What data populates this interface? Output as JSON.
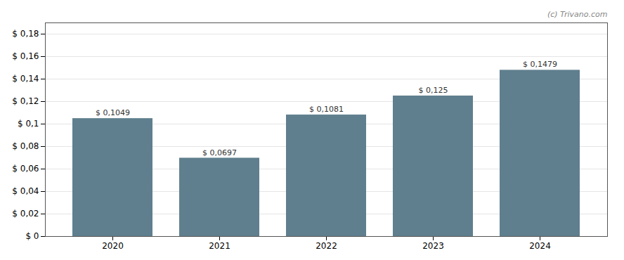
{
  "chart_data": {
    "type": "bar",
    "categories": [
      "2020",
      "2021",
      "2022",
      "2023",
      "2024"
    ],
    "values": [
      0.1049,
      0.0697,
      0.1081,
      0.125,
      0.1479
    ],
    "value_labels": [
      "$ 0,1049",
      "$ 0,0697",
      "$ 0,1081",
      "$ 0,125",
      "$ 0,1479"
    ],
    "data_labels": true,
    "color": "#5f7f8e",
    "ylim": [
      0,
      0.19
    ],
    "yticks": [
      {
        "value": 0,
        "label": "$ 0"
      },
      {
        "value": 0.02,
        "label": "$ 0,02"
      },
      {
        "value": 0.04,
        "label": "$ 0,04"
      },
      {
        "value": 0.06,
        "label": "$ 0,06"
      },
      {
        "value": 0.08,
        "label": "$ 0,08"
      },
      {
        "value": 0.1,
        "label": "$ 0,1"
      },
      {
        "value": 0.12,
        "label": "$ 0,12"
      },
      {
        "value": 0.14,
        "label": "$ 0,14"
      },
      {
        "value": 0.16,
        "label": "$ 0,16"
      },
      {
        "value": 0.18,
        "label": "$ 0,18"
      }
    ],
    "grid": true,
    "annotations": [
      {
        "text": "(c) Trivano.com"
      }
    ]
  }
}
